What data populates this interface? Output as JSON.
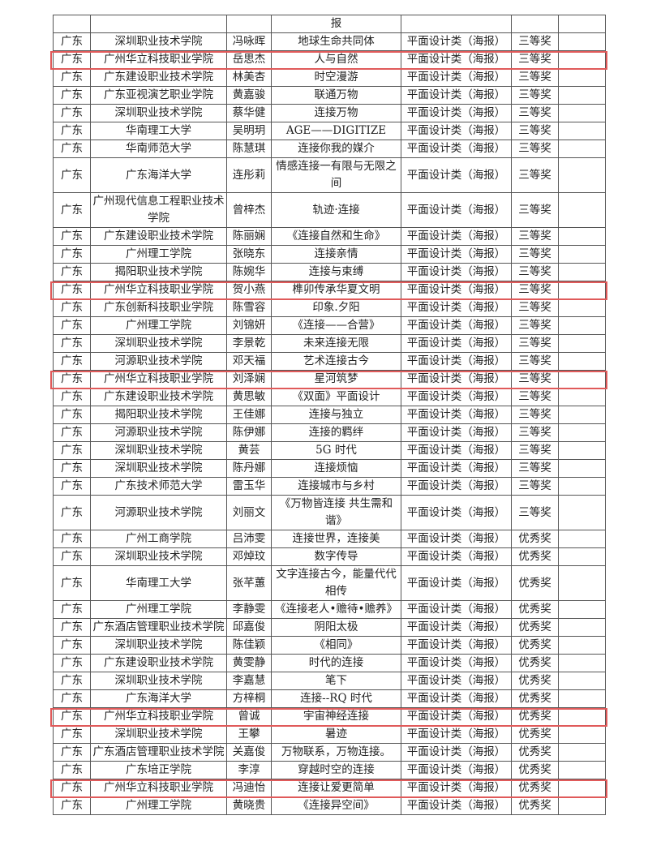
{
  "table": {
    "header_row": [
      "",
      "",
      "",
      "报",
      "",
      "",
      ""
    ],
    "rows": [
      {
        "province": "广东",
        "school": "深圳职业技术学院",
        "name": "冯咏晖",
        "title": "地球生命共同体",
        "category": "平面设计类（海报）",
        "award": "三等奖",
        "highlighted": false
      },
      {
        "province": "广东",
        "school": "广州华立科技职业学院",
        "name": "岳思杰",
        "title": "人与自然",
        "category": "平面设计类（海报）",
        "award": "三等奖",
        "highlighted": true
      },
      {
        "province": "广东",
        "school": "广东建设职业技术学院",
        "name": "林美杏",
        "title": "时空漫游",
        "category": "平面设计类（海报）",
        "award": "三等奖",
        "highlighted": false
      },
      {
        "province": "广东",
        "school": "广东亚视演艺职业学院",
        "name": "黄嘉骏",
        "title": "联通万物",
        "category": "平面设计类（海报）",
        "award": "三等奖",
        "highlighted": false
      },
      {
        "province": "广东",
        "school": "深圳职业技术学院",
        "name": "蔡华健",
        "title": "连接万物",
        "category": "平面设计类（海报）",
        "award": "三等奖",
        "highlighted": false
      },
      {
        "province": "广东",
        "school": "华南理工大学",
        "name": "吴明玥",
        "title": "AGE——DIGITIZE",
        "category": "平面设计类（海报）",
        "award": "三等奖",
        "highlighted": false
      },
      {
        "province": "广东",
        "school": "华南师范大学",
        "name": "陈慧琪",
        "title": "连接你我的媒介",
        "category": "平面设计类（海报）",
        "award": "三等奖",
        "highlighted": false
      },
      {
        "province": "广东",
        "school": "广东海洋大学",
        "name": "连彤莉",
        "title": "情感连接一有限与无限之间",
        "category": "平面设计类（海报）",
        "award": "三等奖",
        "highlighted": false
      },
      {
        "province": "广东",
        "school": "广州现代信息工程职业技术学院",
        "name": "曾梓杰",
        "title": "轨迹·连接",
        "category": "平面设计类（海报）",
        "award": "三等奖",
        "highlighted": false
      },
      {
        "province": "广东",
        "school": "广东建设职业技术学院",
        "name": "陈丽娴",
        "title": "《连接自然和生命》",
        "category": "平面设计类（海报）",
        "award": "三等奖",
        "highlighted": false
      },
      {
        "province": "广东",
        "school": "广州理工学院",
        "name": "张晓东",
        "title": "连接亲情",
        "category": "平面设计类（海报）",
        "award": "三等奖",
        "highlighted": false
      },
      {
        "province": "广东",
        "school": "揭阳职业技术学院",
        "name": "陈婉华",
        "title": "连接与束缚",
        "category": "平面设计类（海报）",
        "award": "三等奖",
        "highlighted": false
      },
      {
        "province": "广东",
        "school": "广州华立科技职业学院",
        "name": "贺小燕",
        "title": "榫卯传承华夏文明",
        "category": "平面设计类（海报）",
        "award": "三等奖",
        "highlighted": true
      },
      {
        "province": "广东",
        "school": "广东创新科技职业学院",
        "name": "陈雪容",
        "title": "印象.夕阳",
        "category": "平面设计类（海报）",
        "award": "三等奖",
        "highlighted": false
      },
      {
        "province": "广东",
        "school": "广州理工学院",
        "name": "刘锦妍",
        "title": "《连接——合营》",
        "category": "平面设计类（海报）",
        "award": "三等奖",
        "highlighted": false
      },
      {
        "province": "广东",
        "school": "深圳职业技术学院",
        "name": "李景乾",
        "title": "未来连接无限",
        "category": "平面设计类（海报）",
        "award": "三等奖",
        "highlighted": false
      },
      {
        "province": "广东",
        "school": "河源职业技术学院",
        "name": "邓天福",
        "title": "艺术连接古今",
        "category": "平面设计类（海报）",
        "award": "三等奖",
        "highlighted": false
      },
      {
        "province": "广东",
        "school": "广州华立科技职业学院",
        "name": "刘泽娴",
        "title": "星河筑梦",
        "category": "平面设计类（海报）",
        "award": "三等奖",
        "highlighted": true
      },
      {
        "province": "广东",
        "school": "广东建设职业技术学院",
        "name": "黄思敏",
        "title": "《双面》平面设计",
        "category": "平面设计类（海报）",
        "award": "三等奖",
        "highlighted": false
      },
      {
        "province": "广东",
        "school": "揭阳职业技术学院",
        "name": "王佳娜",
        "title": "连接与独立",
        "category": "平面设计类（海报）",
        "award": "三等奖",
        "highlighted": false
      },
      {
        "province": "广东",
        "school": "河源职业技术学院",
        "name": "陈伊娜",
        "title": "连接的羁绊",
        "category": "平面设计类（海报）",
        "award": "三等奖",
        "highlighted": false
      },
      {
        "province": "广东",
        "school": "深圳职业技术学院",
        "name": "黄芸",
        "title": "5G 时代",
        "category": "平面设计类（海报）",
        "award": "三等奖",
        "highlighted": false
      },
      {
        "province": "广东",
        "school": "深圳职业技术学院",
        "name": "陈丹娜",
        "title": "连接烦恼",
        "category": "平面设计类（海报）",
        "award": "三等奖",
        "highlighted": false
      },
      {
        "province": "广东",
        "school": "广东技术师范大学",
        "name": "雷玉华",
        "title": "连接城市与乡村",
        "category": "平面设计类（海报）",
        "award": "三等奖",
        "highlighted": false
      },
      {
        "province": "广东",
        "school": "河源职业技术学院",
        "name": "刘丽文",
        "title": "《万物皆连接 共生需和谐》",
        "category": "平面设计类（海报）",
        "award": "三等奖",
        "highlighted": false
      },
      {
        "province": "广东",
        "school": "广州工商学院",
        "name": "吕沛雯",
        "title": "连接世界，连接美",
        "category": "平面设计类（海报）",
        "award": "优秀奖",
        "highlighted": false
      },
      {
        "province": "广东",
        "school": "深圳职业技术学院",
        "name": "邓焯玟",
        "title": "数字传导",
        "category": "平面设计类（海报）",
        "award": "优秀奖",
        "highlighted": false
      },
      {
        "province": "广东",
        "school": "华南理工大学",
        "name": "张芊蕙",
        "title": "文字连接古今，能量代代相传",
        "category": "平面设计类（海报）",
        "award": "优秀奖",
        "highlighted": false
      },
      {
        "province": "广东",
        "school": "广州理工学院",
        "name": "李静雯",
        "title": "《连接老人•赡待•赡养》",
        "category": "平面设计类（海报）",
        "award": "优秀奖",
        "highlighted": false
      },
      {
        "province": "广东",
        "school": "广东酒店管理职业技术学院",
        "name": "邱嘉俊",
        "title": "阴阳太极",
        "category": "平面设计类（海报）",
        "award": "优秀奖",
        "highlighted": false
      },
      {
        "province": "广东",
        "school": "深圳职业技术学院",
        "name": "陈佳颖",
        "title": "《相同》",
        "category": "平面设计类（海报）",
        "award": "优秀奖",
        "highlighted": false
      },
      {
        "province": "广东",
        "school": "广东建设职业技术学院",
        "name": "黄雯静",
        "title": "时代的连接",
        "category": "平面设计类（海报）",
        "award": "优秀奖",
        "highlighted": false
      },
      {
        "province": "广东",
        "school": "深圳职业技术学院",
        "name": "李嘉慧",
        "title": "笔下",
        "category": "平面设计类（海报）",
        "award": "优秀奖",
        "highlighted": false
      },
      {
        "province": "广东",
        "school": "广东海洋大学",
        "name": "方梓桐",
        "title": "连接--RQ 时代",
        "category": "平面设计类（海报）",
        "award": "优秀奖",
        "highlighted": false
      },
      {
        "province": "广东",
        "school": "广州华立科技职业学院",
        "name": "曾诚",
        "title": "宇宙神经连接",
        "category": "平面设计类（海报）",
        "award": "优秀奖",
        "highlighted": true
      },
      {
        "province": "广东",
        "school": "深圳职业技术学院",
        "name": "王攀",
        "title": "暑迹",
        "category": "平面设计类（海报）",
        "award": "优秀奖",
        "highlighted": false
      },
      {
        "province": "广东",
        "school": "广东酒店管理职业技术学院",
        "name": "关嘉俊",
        "title": "万物联系，万物连接。",
        "category": "平面设计类（海报）",
        "award": "优秀奖",
        "highlighted": false
      },
      {
        "province": "广东",
        "school": "广东培正学院",
        "name": "李淳",
        "title": "穿越时空的连接",
        "category": "平面设计类（海报）",
        "award": "优秀奖",
        "highlighted": false
      },
      {
        "province": "广东",
        "school": "广州华立科技职业学院",
        "name": "冯迪怡",
        "title": "连接让爱更简单",
        "category": "平面设计类（海报）",
        "award": "优秀奖",
        "highlighted": true
      },
      {
        "province": "广东",
        "school": "广州理工学院",
        "name": "黄晓贵",
        "title": "《连接异空间》",
        "category": "平面设计类（海报）",
        "award": "优秀奖",
        "highlighted": false
      }
    ]
  },
  "colors": {
    "highlight_box": "#e05a5a",
    "grid": "#555555"
  }
}
